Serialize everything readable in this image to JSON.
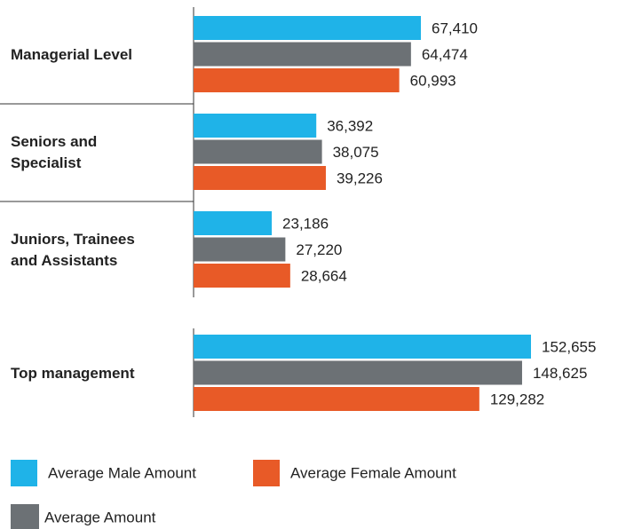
{
  "chart_data": [
    {
      "type": "hbar",
      "categories": [
        "Managerial Level",
        "Seniors and Specialist",
        "Juniors, Trainees and Assistants"
      ],
      "series": [
        {
          "name": "Average Male Amount",
          "color": "#1fb3e8",
          "values": [
            67410,
            36392,
            23186
          ],
          "value_labels": [
            "67,410",
            "36,392",
            "23,186"
          ]
        },
        {
          "name": "Average Amount",
          "color": "#6c7175",
          "values": [
            64474,
            38075,
            27220
          ],
          "value_labels": [
            "64,474",
            "38,075",
            "27,220"
          ]
        },
        {
          "name": "Average Female Amount",
          "color": "#e85a27",
          "values": [
            60993,
            39226,
            28664
          ],
          "value_labels": [
            "60,993",
            "39,226",
            "28,664"
          ]
        }
      ]
    },
    {
      "type": "hbar",
      "categories": [
        "Top management"
      ],
      "series": [
        {
          "color": "#1fb3e8",
          "values": [
            152655
          ],
          "value_labels": [
            "152,655"
          ]
        },
        {
          "color": "#6c7175",
          "values": [
            148625
          ],
          "value_labels": [
            "148,625"
          ]
        },
        {
          "color": "#e85a27",
          "values": [
            129282
          ],
          "value_labels": [
            "129,282"
          ]
        }
      ]
    }
  ]
}
